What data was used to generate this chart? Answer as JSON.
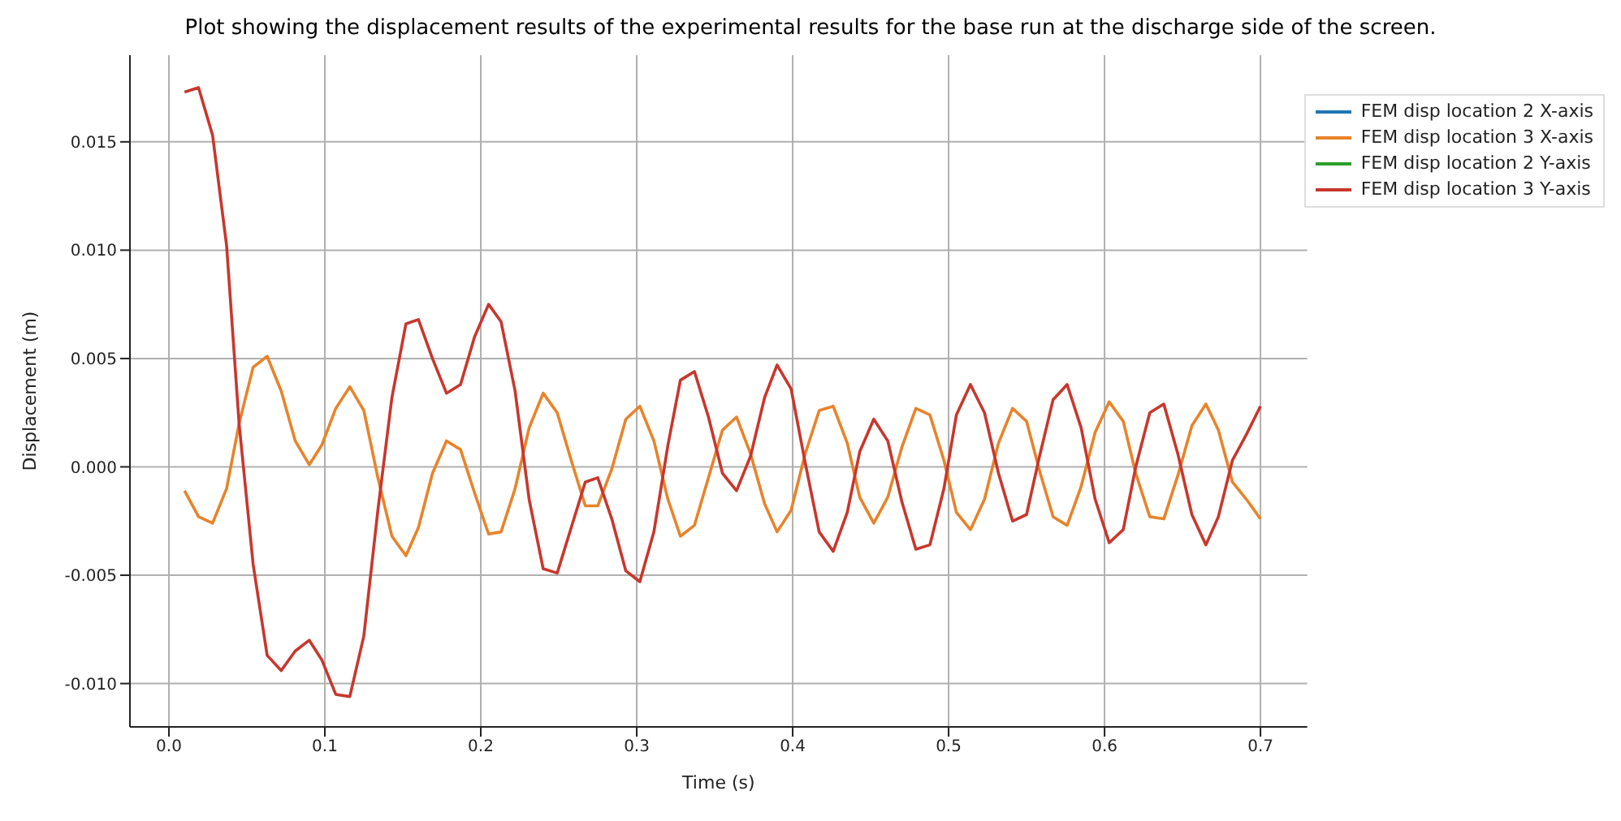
{
  "chart_data": {
    "type": "line",
    "title": "Plot showing the displacement results of the experimental results for the base run at the discharge side of the screen.",
    "xlabel": "Time (s)",
    "ylabel": "Displacement (m)",
    "x": [
      0.01,
      0.019,
      0.028,
      0.037,
      0.045,
      0.054,
      0.063,
      0.072,
      0.081,
      0.09,
      0.098,
      0.107,
      0.116,
      0.125,
      0.134,
      0.143,
      0.152,
      0.16,
      0.169,
      0.178,
      0.187,
      0.196,
      0.205,
      0.213,
      0.222,
      0.231,
      0.24,
      0.249,
      0.258,
      0.267,
      0.275,
      0.284,
      0.293,
      0.302,
      0.311,
      0.32,
      0.328,
      0.337,
      0.346,
      0.355,
      0.364,
      0.373,
      0.382,
      0.39,
      0.399,
      0.408,
      0.417,
      0.426,
      0.435,
      0.443,
      0.452,
      0.461,
      0.47,
      0.479,
      0.488,
      0.497,
      0.505,
      0.514,
      0.523,
      0.532,
      0.541,
      0.55,
      0.558,
      0.567,
      0.576,
      0.585,
      0.594,
      0.603,
      0.612,
      0.62,
      0.629,
      0.638,
      0.647,
      0.656,
      0.665,
      0.673,
      0.682,
      0.691,
      0.7
    ],
    "series": [
      {
        "name": "FEM disp location 2 X-axis",
        "color": "#1f77b4",
        "values": [
          null,
          null,
          null,
          null,
          null,
          null,
          null,
          null,
          null,
          null,
          null,
          null,
          null,
          null,
          null,
          null,
          null,
          null,
          null,
          null,
          null,
          null,
          null,
          null,
          null,
          null,
          null,
          null,
          null,
          null,
          null,
          null,
          null,
          null,
          null,
          null,
          null,
          null,
          null,
          null,
          null,
          null,
          null,
          null,
          null,
          null,
          null,
          null,
          null,
          null,
          null,
          null,
          null,
          null,
          null,
          null,
          null,
          null,
          null,
          null,
          null,
          null,
          null,
          null,
          null,
          null,
          null,
          null,
          null,
          null,
          null,
          null,
          null,
          null,
          null,
          null,
          null,
          null,
          null
        ]
      },
      {
        "name": "FEM disp location 3 X-axis",
        "color": "#e8832a",
        "values": [
          -0.0011,
          -0.0023,
          -0.0026,
          -0.001,
          0.002,
          0.0046,
          0.0051,
          0.0035,
          0.0012,
          0.0001,
          0.001,
          0.0027,
          0.0037,
          0.0026,
          -0.0005,
          -0.0032,
          -0.0041,
          -0.0028,
          -0.0003,
          0.0012,
          0.0008,
          -0.0012,
          -0.0031,
          -0.003,
          -0.001,
          0.0018,
          0.0034,
          0.0025,
          0.0003,
          -0.0018,
          -0.0018,
          -0.0001,
          0.0022,
          0.0028,
          0.0012,
          -0.0015,
          -0.0032,
          -0.0027,
          -0.0005,
          0.0017,
          0.0023,
          0.0006,
          -0.0017,
          -0.003,
          -0.002,
          0.0006,
          0.0026,
          0.0028,
          0.0011,
          -0.0014,
          -0.0026,
          -0.0014,
          0.0009,
          0.0027,
          0.0024,
          0.0003,
          -0.0021,
          -0.0029,
          -0.0015,
          0.0011,
          0.0027,
          0.0021,
          -0.0001,
          -0.0023,
          -0.0027,
          -0.0009,
          0.0016,
          0.003,
          0.0021,
          -0.0003,
          -0.0023,
          -0.0024,
          -0.0004,
          0.0019,
          0.0029,
          0.0017,
          -0.0007,
          -0.0015,
          -0.0024
        ]
      },
      {
        "name": "FEM disp location 2 Y-axis",
        "color": "#2ca02c",
        "values": [
          null,
          null,
          null,
          null,
          null,
          null,
          null,
          null,
          null,
          null,
          null,
          null,
          null,
          null,
          null,
          null,
          null,
          null,
          null,
          null,
          null,
          null,
          null,
          null,
          null,
          null,
          null,
          null,
          null,
          null,
          null,
          null,
          null,
          null,
          null,
          null,
          null,
          null,
          null,
          null,
          null,
          null,
          null,
          null,
          null,
          null,
          null,
          null,
          null,
          null,
          null,
          null,
          null,
          null,
          null,
          null,
          null,
          null,
          null,
          null,
          null,
          null,
          null,
          null,
          null,
          null,
          null,
          null,
          null,
          null,
          null,
          null,
          null,
          null,
          null,
          null,
          null,
          null,
          null
        ]
      },
      {
        "name": "FEM disp location 3 Y-axis",
        "color": "#c8372d",
        "values": [
          0.0173,
          0.0175,
          0.0153,
          0.0102,
          0.002,
          -0.0045,
          -0.0087,
          -0.0094,
          -0.0085,
          -0.008,
          -0.0089,
          -0.0105,
          -0.0106,
          -0.0078,
          -0.002,
          0.0032,
          0.0066,
          0.0068,
          0.005,
          0.0034,
          0.0038,
          0.006,
          0.0075,
          0.0067,
          0.0035,
          -0.0015,
          -0.0047,
          -0.0049,
          -0.0028,
          -0.0007,
          -0.0005,
          -0.0024,
          -0.0048,
          -0.0053,
          -0.003,
          0.001,
          0.004,
          0.0044,
          0.0023,
          -0.0003,
          -0.0011,
          0.0005,
          0.0032,
          0.0047,
          0.0036,
          0.0002,
          -0.003,
          -0.0039,
          -0.0021,
          0.0007,
          0.0022,
          0.0012,
          -0.0016,
          -0.0038,
          -0.0036,
          -0.001,
          0.0024,
          0.0038,
          0.0025,
          -0.0003,
          -0.0025,
          -0.0022,
          0.0004,
          0.0031,
          0.0038,
          0.0018,
          -0.0015,
          -0.0035,
          -0.0029,
          0,
          0.0025,
          0.0029,
          0.0006,
          -0.0022,
          -0.0036,
          -0.0023,
          0.0003,
          0.0015,
          0.0028
        ]
      }
    ],
    "xlim": [
      -0.025,
      0.73
    ],
    "ylim": [
      -0.012,
      0.019
    ],
    "xticks": [
      {
        "value": 0,
        "label": "0.0"
      },
      {
        "value": 0.1,
        "label": "0.1"
      },
      {
        "value": 0.2,
        "label": "0.2"
      },
      {
        "value": 0.3,
        "label": "0.3"
      },
      {
        "value": 0.4,
        "label": "0.4"
      },
      {
        "value": 0.5,
        "label": "0.5"
      },
      {
        "value": 0.6,
        "label": "0.6"
      },
      {
        "value": 0.7,
        "label": "0.7"
      }
    ],
    "yticks": [
      {
        "value": -0.01,
        "label": "-0.010"
      },
      {
        "value": -0.005,
        "label": "-0.005"
      },
      {
        "value": 0,
        "label": "0.000"
      },
      {
        "value": 0.005,
        "label": "0.005"
      },
      {
        "value": 0.01,
        "label": "0.010"
      },
      {
        "value": 0.015,
        "label": "0.015"
      }
    ],
    "grid": true,
    "legend": "top right",
    "marker": "none",
    "line_style": "solid"
  }
}
